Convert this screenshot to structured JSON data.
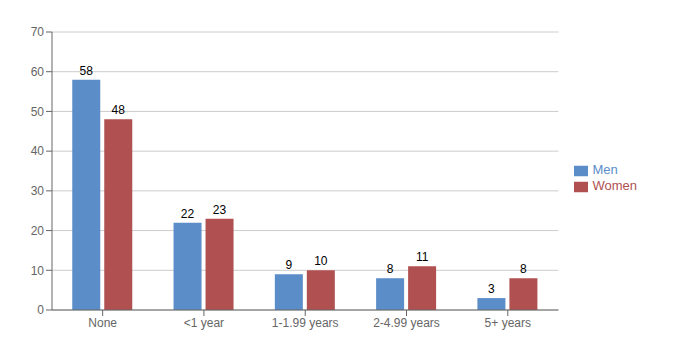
{
  "chart_data": {
    "type": "bar",
    "categories": [
      "None",
      "<1 year",
      "1-1.99 years",
      "2-4.99 years",
      "5+ years"
    ],
    "series": [
      {
        "name": "Men",
        "color": "#5B8DC8",
        "values": [
          58,
          22,
          9,
          8,
          3
        ]
      },
      {
        "name": "Women",
        "color": "#B05050",
        "values": [
          48,
          23,
          10,
          11,
          8
        ]
      }
    ],
    "ylim": [
      0,
      70
    ],
    "yticks": [
      0,
      10,
      20,
      30,
      40,
      50,
      60,
      70
    ],
    "grid": true,
    "data_labels": true,
    "legend": "right"
  }
}
